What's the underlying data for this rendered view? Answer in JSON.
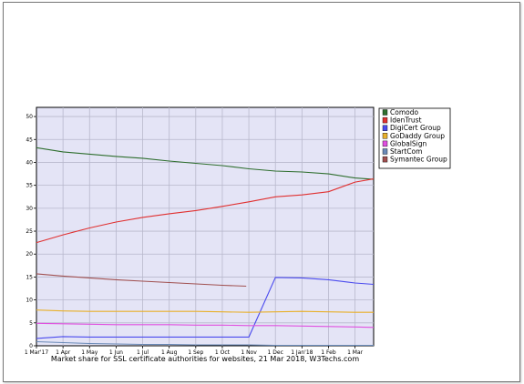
{
  "chart_data": {
    "type": "line",
    "caption": "Market share for SSL certificate authorities for websites, 21 Mar 2018, W3Techs.com",
    "x_ticks": [
      "1 Mar'17",
      "1 Apr",
      "1 May",
      "1 Jun",
      "1 Jul",
      "1 Aug",
      "1 Sep",
      "1 Oct",
      "1 Nov",
      "1 Dec",
      "1 Jan'18",
      "1 Feb",
      "1 Mar"
    ],
    "ylim": [
      0,
      52
    ],
    "y_ticks": [
      0,
      5,
      10,
      15,
      20,
      25,
      30,
      35,
      40,
      45,
      50
    ],
    "grid": true,
    "legend_position": "right",
    "series": [
      {
        "name": "Comodo",
        "color": "#2e6e2e",
        "points": [
          [
            0,
            43.2
          ],
          [
            1,
            42.3
          ],
          [
            2,
            41.8
          ],
          [
            3,
            41.3
          ],
          [
            4,
            40.9
          ],
          [
            5,
            40.3
          ],
          [
            6,
            39.8
          ],
          [
            7,
            39.3
          ],
          [
            8,
            38.6
          ],
          [
            9,
            38.1
          ],
          [
            10,
            37.9
          ],
          [
            11,
            37.5
          ],
          [
            12,
            36.6
          ],
          [
            12.7,
            36.3
          ]
        ]
      },
      {
        "name": "IdenTrust",
        "color": "#e03030",
        "points": [
          [
            0,
            22.5
          ],
          [
            1,
            24.2
          ],
          [
            2,
            25.7
          ],
          [
            3,
            27.0
          ],
          [
            4,
            28.0
          ],
          [
            5,
            28.8
          ],
          [
            6,
            29.5
          ],
          [
            7,
            30.4
          ],
          [
            8,
            31.4
          ],
          [
            9,
            32.5
          ],
          [
            10,
            32.9
          ],
          [
            11,
            33.6
          ],
          [
            12,
            35.7
          ],
          [
            12.7,
            36.4
          ]
        ]
      },
      {
        "name": "DigiCert Group",
        "color": "#4a4aee",
        "points": [
          [
            0,
            1.6
          ],
          [
            1,
            2.0
          ],
          [
            2,
            1.9
          ],
          [
            3,
            1.9
          ],
          [
            4,
            1.9
          ],
          [
            5,
            1.9
          ],
          [
            6,
            1.9
          ],
          [
            7,
            1.9
          ],
          [
            8,
            1.9
          ],
          [
            9,
            14.9
          ],
          [
            10,
            14.8
          ],
          [
            11,
            14.4
          ],
          [
            12,
            13.7
          ],
          [
            12.7,
            13.4
          ]
        ]
      },
      {
        "name": "GoDaddy Group",
        "color": "#e8b02a",
        "points": [
          [
            0,
            7.8
          ],
          [
            1,
            7.6
          ],
          [
            2,
            7.5
          ],
          [
            3,
            7.5
          ],
          [
            4,
            7.5
          ],
          [
            5,
            7.5
          ],
          [
            6,
            7.5
          ],
          [
            7,
            7.4
          ],
          [
            8,
            7.3
          ],
          [
            9,
            7.4
          ],
          [
            10,
            7.5
          ],
          [
            11,
            7.4
          ],
          [
            12,
            7.3
          ],
          [
            12.7,
            7.3
          ]
        ]
      },
      {
        "name": "GlobalSign",
        "color": "#e050e0",
        "points": [
          [
            0,
            4.9
          ],
          [
            1,
            4.8
          ],
          [
            2,
            4.7
          ],
          [
            3,
            4.6
          ],
          [
            4,
            4.6
          ],
          [
            5,
            4.6
          ],
          [
            6,
            4.5
          ],
          [
            7,
            4.5
          ],
          [
            8,
            4.4
          ],
          [
            9,
            4.4
          ],
          [
            10,
            4.3
          ],
          [
            11,
            4.2
          ],
          [
            12,
            4.1
          ],
          [
            12.7,
            4.0
          ]
        ]
      },
      {
        "name": "StartCom",
        "color": "#6a8ab8",
        "points": [
          [
            0,
            0.9
          ],
          [
            1,
            0.7
          ],
          [
            2,
            0.5
          ],
          [
            3,
            0.4
          ],
          [
            4,
            0.3
          ],
          [
            5,
            0.3
          ],
          [
            6,
            0.2
          ],
          [
            7,
            0.2
          ],
          [
            8,
            0.2
          ],
          [
            9,
            0.1
          ],
          [
            10,
            0.1
          ],
          [
            11,
            0.1
          ],
          [
            12,
            0.1
          ],
          [
            12.7,
            0.1
          ]
        ]
      },
      {
        "name": "Symantec Group",
        "color": "#a05050",
        "points": [
          [
            0,
            15.7
          ],
          [
            1,
            15.2
          ],
          [
            2,
            14.8
          ],
          [
            3,
            14.4
          ],
          [
            4,
            14.1
          ],
          [
            5,
            13.8
          ],
          [
            6,
            13.5
          ],
          [
            7,
            13.2
          ],
          [
            7.9,
            13.0
          ]
        ]
      }
    ]
  }
}
